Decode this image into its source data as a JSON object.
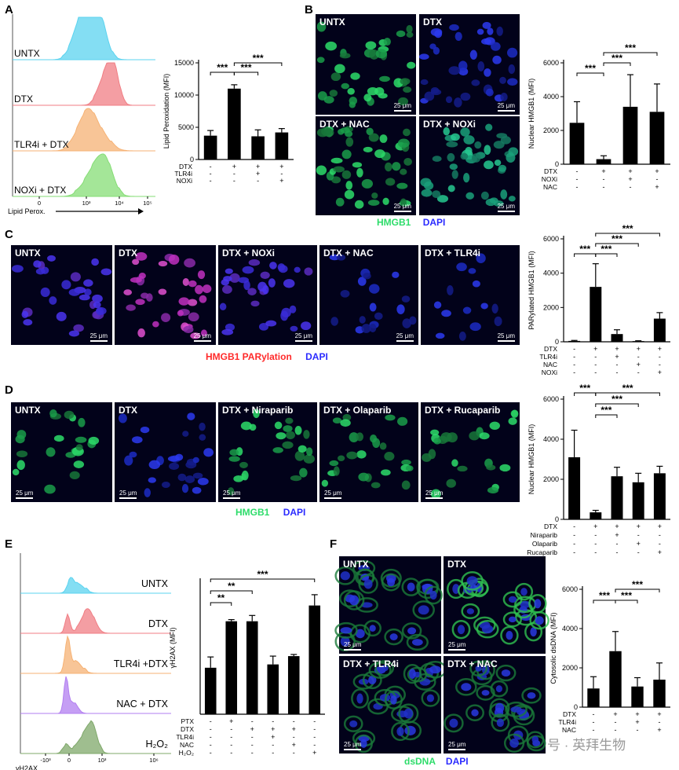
{
  "panels": {
    "A": {
      "label": "A",
      "flow": {
        "rows": [
          "UNTX",
          "DTX",
          "TLR4i + DTX",
          "NOXi + DTX"
        ],
        "colors": [
          "#5bd3ef",
          "#f07e84",
          "#f6b274",
          "#86dd76"
        ],
        "axis_label": "Lipid Perox.",
        "ticks": [
          "0",
          "10³",
          "10⁴",
          "10⁵"
        ]
      },
      "chart": {
        "type": "bar",
        "ylabel": "Lipid Peroxidation (MFI)",
        "yticks": [
          "0",
          "5000",
          "10000",
          "15000"
        ],
        "ylim": [
          0,
          15000
        ],
        "values": [
          3700,
          11000,
          3600,
          4200
        ],
        "errors": [
          800,
          600,
          1000,
          600
        ],
        "conditions": [
          {
            "name": "DTX",
            "marks": [
              "-",
              "+",
              "+",
              "+"
            ]
          },
          {
            "name": "TLR4i",
            "marks": [
              "-",
              "-",
              "+",
              "-"
            ]
          },
          {
            "name": "NOXi",
            "marks": [
              "-",
              "-",
              "-",
              "+"
            ]
          }
        ],
        "sig": [
          {
            "from": 0,
            "to": 1,
            "label": "***",
            "level": 1
          },
          {
            "from": 1,
            "to": 2,
            "label": "***",
            "level": 1
          },
          {
            "from": 1,
            "to": 3,
            "label": "***",
            "level": 2
          }
        ]
      }
    },
    "B": {
      "label": "B",
      "images": [
        "UNTX",
        "DTX",
        "DTX + NAC",
        "DTX + NOXi"
      ],
      "scale": "25 μm",
      "legend": [
        {
          "text": "HMGB1",
          "color": "#2ddc6a"
        },
        {
          "text": "DAPI",
          "color": "#2b2bff"
        }
      ],
      "chart": {
        "type": "bar",
        "ylabel": "Nuclear HMGB1 (MFI)",
        "yticks": [
          "0",
          "2000",
          "4000",
          "6000"
        ],
        "ylim": [
          0,
          6000
        ],
        "values": [
          2450,
          300,
          3400,
          3100
        ],
        "errors": [
          1250,
          200,
          1900,
          1650
        ],
        "conditions": [
          {
            "name": "DTX",
            "marks": [
              "-",
              "+",
              "+",
              "+"
            ]
          },
          {
            "name": "NOXi",
            "marks": [
              "-",
              "-",
              "+",
              "-"
            ]
          },
          {
            "name": "NAC",
            "marks": [
              "-",
              "-",
              "-",
              "+"
            ]
          }
        ],
        "sig": [
          {
            "from": 0,
            "to": 1,
            "label": "***",
            "level": 1
          },
          {
            "from": 1,
            "to": 2,
            "label": "***",
            "level": 2
          },
          {
            "from": 1,
            "to": 3,
            "label": "***",
            "level": 3
          }
        ]
      }
    },
    "C": {
      "label": "C",
      "images": [
        "UNTX",
        "DTX",
        "DTX + NOXi",
        "DTX + NAC",
        "DTX + TLR4i"
      ],
      "scale": "25 μm",
      "legend": [
        {
          "text": "HMGB1 PARylation",
          "color": "#ff2a2a"
        },
        {
          "text": "DAPI",
          "color": "#2b2bff"
        }
      ],
      "chart": {
        "type": "bar",
        "ylabel": "PARylated HMGB1 (MFI)",
        "yticks": [
          "0",
          "2000",
          "4000",
          "6000"
        ],
        "ylim": [
          0,
          6000
        ],
        "values": [
          50,
          3200,
          450,
          40,
          1350
        ],
        "errors": [
          30,
          1350,
          250,
          20,
          350
        ],
        "conditions": [
          {
            "name": "DTX",
            "marks": [
              "-",
              "+",
              "+",
              "+",
              "+"
            ]
          },
          {
            "name": "TLR4i",
            "marks": [
              "-",
              "-",
              "+",
              "-",
              "-"
            ]
          },
          {
            "name": "NAC",
            "marks": [
              "-",
              "-",
              "-",
              "+",
              "-"
            ]
          },
          {
            "name": "NOXi",
            "marks": [
              "-",
              "-",
              "-",
              "-",
              "+"
            ]
          }
        ],
        "sig": [
          {
            "from": 0,
            "to": 1,
            "label": "***",
            "level": 1
          },
          {
            "from": 1,
            "to": 2,
            "label": "***",
            "level": 1
          },
          {
            "from": 1,
            "to": 3,
            "label": "***",
            "level": 2
          },
          {
            "from": 1,
            "to": 4,
            "label": "***",
            "level": 3
          }
        ]
      }
    },
    "D": {
      "label": "D",
      "images": [
        "UNTX",
        "DTX",
        "DTX + Niraparib",
        "DTX + Olaparib",
        "DTX + Rucaparib"
      ],
      "scale": "25 μm",
      "legend": [
        {
          "text": "HMGB1",
          "color": "#2ddc6a"
        },
        {
          "text": "DAPI",
          "color": "#2b2bff"
        }
      ],
      "chart": {
        "type": "bar",
        "ylabel": "Nuclear HMGB1 (MFI)",
        "yticks": [
          "0",
          "2000",
          "4000",
          "6000"
        ],
        "ylim": [
          0,
          6000
        ],
        "values": [
          3100,
          350,
          2150,
          1850,
          2300
        ],
        "errors": [
          1350,
          100,
          450,
          450,
          350
        ],
        "conditions": [
          {
            "name": "DTX",
            "marks": [
              "-",
              "+",
              "+",
              "+",
              "+"
            ]
          },
          {
            "name": "Niraparib",
            "marks": [
              "-",
              "-",
              "+",
              "-",
              "-"
            ]
          },
          {
            "name": "Olaparib",
            "marks": [
              "-",
              "-",
              "-",
              "+",
              "-"
            ]
          },
          {
            "name": "Rucaparib",
            "marks": [
              "-",
              "-",
              "-",
              "-",
              "+"
            ]
          }
        ],
        "sig": [
          {
            "from": 0,
            "to": 1,
            "label": "***",
            "level": 3
          },
          {
            "from": 1,
            "to": 2,
            "label": "***",
            "level": 1
          },
          {
            "from": 1,
            "to": 3,
            "label": "***",
            "level": 2
          },
          {
            "from": 1,
            "to": 4,
            "label": "***",
            "level": 3
          }
        ]
      }
    },
    "E": {
      "label": "E",
      "flow": {
        "rows": [
          "UNTX",
          "DTX",
          "TLR4i +DTX",
          "NAC + DTX",
          "H₂O₂"
        ],
        "colors": [
          "#5bd3ef",
          "#f07e84",
          "#f6b274",
          "#b27ef0",
          "#7fa86a"
        ],
        "axis_label": "γH2AX",
        "ticks": [
          "-10³",
          "0",
          "10³",
          "10⁶"
        ]
      },
      "chart": {
        "type": "bar",
        "ylabel": "γH2AX (MFI)",
        "yticks": [],
        "ylim": [
          0,
          800
        ],
        "values": [
          280,
          560,
          560,
          300,
          350,
          655
        ],
        "errors": [
          65,
          10,
          35,
          50,
          10,
          65
        ],
        "conditions": [
          {
            "name": "PTX",
            "marks": [
              "-",
              "+",
              "-",
              "-",
              "-",
              "-"
            ]
          },
          {
            "name": "DTX",
            "marks": [
              "-",
              "-",
              "+",
              "+",
              "+",
              "-"
            ]
          },
          {
            "name": "TLR4i",
            "marks": [
              "-",
              "-",
              "-",
              "+",
              "-",
              "-"
            ]
          },
          {
            "name": "NAC",
            "marks": [
              "-",
              "-",
              "-",
              "-",
              "+",
              "-"
            ]
          },
          {
            "name": "H₂O₂",
            "marks": [
              "-",
              "-",
              "-",
              "-",
              "-",
              "+"
            ]
          }
        ],
        "sig": [
          {
            "from": 0,
            "to": 1,
            "label": "**",
            "level": 1
          },
          {
            "from": 0,
            "to": 2,
            "label": "**",
            "level": 2
          },
          {
            "from": 0,
            "to": 5,
            "label": "***",
            "level": 3
          }
        ]
      }
    },
    "F": {
      "label": "F",
      "images": [
        "UNTX",
        "DTX",
        "DTX + TLR4i",
        "DTX + NAC"
      ],
      "scale": "25 μm",
      "legend": [
        {
          "text": "dsDNA",
          "color": "#2ddc6a"
        },
        {
          "text": "DAPI",
          "color": "#2b2bff"
        }
      ],
      "chart": {
        "type": "bar",
        "ylabel": "Cytosolic dsDNA (MFI)",
        "yticks": [
          "0",
          "2000",
          "4000",
          "6000"
        ],
        "ylim": [
          0,
          6000
        ],
        "values": [
          950,
          2850,
          1050,
          1400
        ],
        "errors": [
          600,
          1000,
          450,
          850
        ],
        "conditions": [
          {
            "name": "DTX",
            "marks": [
              "-",
              "+",
              "+",
              "+"
            ]
          },
          {
            "name": "TLR4i",
            "marks": [
              "-",
              "-",
              "+",
              "-"
            ]
          },
          {
            "name": "NAC",
            "marks": [
              "-",
              "-",
              "-",
              "+"
            ]
          }
        ],
        "sig": [
          {
            "from": 0,
            "to": 1,
            "label": "***",
            "level": 1
          },
          {
            "from": 1,
            "to": 2,
            "label": "***",
            "level": 1
          },
          {
            "from": 1,
            "to": 3,
            "label": "***",
            "level": 2
          }
        ]
      }
    }
  },
  "watermark": "号 · 英拜生物"
}
